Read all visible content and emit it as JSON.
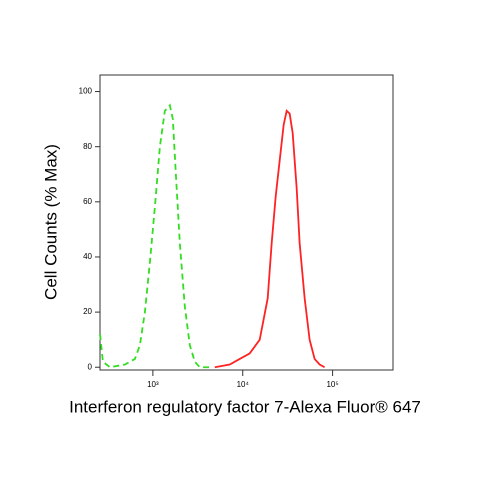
{
  "chart_data": {
    "type": "line",
    "x_label": "Interferon regulatory factor 7-Alexa Fluor® 647",
    "y_label": "Cell Counts (% Max)",
    "x_scale": "log",
    "xlim": [
      258,
      470000
    ],
    "ylim": [
      -1,
      106
    ],
    "xticks": [
      {
        "value": 1000,
        "label": "10³"
      },
      {
        "value": 10000,
        "label": "10⁴"
      },
      {
        "value": 100000,
        "label": "10⁵"
      }
    ],
    "yticks": [
      0,
      20,
      40,
      60,
      80,
      100
    ],
    "series": [
      {
        "color": "#33dd22",
        "line_style": "dashed",
        "x": [
          258,
          278,
          333,
          489,
          631,
          717,
          815,
          926,
          1052,
          1197,
          1359,
          1545,
          1668,
          1802,
          1995,
          2268,
          2577,
          2929,
          3327,
          4297
        ],
        "values": [
          12,
          2,
          0,
          1,
          3,
          8,
          20,
          38,
          58,
          80,
          93,
          95,
          90,
          70,
          45,
          22,
          8,
          2,
          0,
          0
        ]
      },
      {
        "color": "#ff2222",
        "line_style": "solid",
        "x": [
          4887,
          7175,
          9261,
          11960,
          15450,
          18950,
          20990,
          23270,
          25770,
          28560,
          30830,
          33270,
          35940,
          39810,
          42970,
          48870,
          55490,
          63100,
          71780,
          81470
        ],
        "values": [
          0,
          1,
          3,
          5,
          10,
          25,
          45,
          62,
          75,
          88,
          93,
          92,
          85,
          65,
          45,
          25,
          10,
          3,
          1,
          0
        ]
      }
    ]
  }
}
